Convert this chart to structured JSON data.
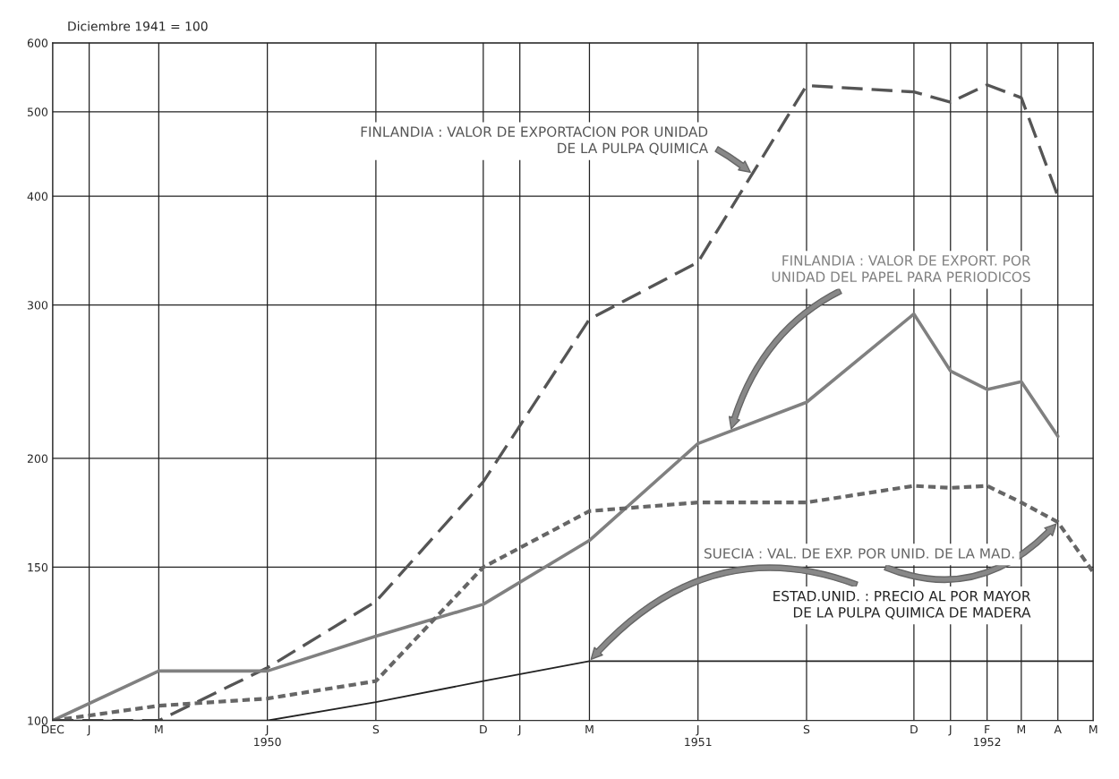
{
  "chart_data": {
    "type": "line",
    "subtitle": "Diciembre 1941 = 100",
    "log": "y",
    "ylim": [
      100,
      600
    ],
    "yticks": [
      100,
      150,
      200,
      300,
      400,
      500,
      600
    ],
    "xlim": [
      "1949-12",
      "1952-05"
    ],
    "xticks": [
      {
        "value": "1949-12",
        "label": "DEC"
      },
      {
        "value": "1950-01",
        "label": "J"
      },
      {
        "value": "1950-03",
        "label": "M"
      },
      {
        "value": "1950-06",
        "label": "J\n1950"
      },
      {
        "value": "1950-09",
        "label": "S"
      },
      {
        "value": "1950-12",
        "label": "D"
      },
      {
        "value": "1951-01",
        "label": "J"
      },
      {
        "value": "1951-03",
        "label": "M"
      },
      {
        "value": "1951-06",
        "label": "J\n1951"
      },
      {
        "value": "1951-09",
        "label": "S"
      },
      {
        "value": "1951-12",
        "label": "D"
      },
      {
        "value": "1952-01",
        "label": "J"
      },
      {
        "value": "1952-02",
        "label": "F\n1952"
      },
      {
        "value": "1952-03",
        "label": "M"
      },
      {
        "value": "1952-04",
        "label": "A"
      },
      {
        "value": "1952-05",
        "label": "M"
      }
    ],
    "grid": true,
    "legend": false,
    "series": [
      {
        "name": "FINLANDIA : VALOR DE EXPORTACION POR UNIDAD\nDE LA PULPA QUIMICA",
        "color": "#555555",
        "line_style": "dashed",
        "x": [
          "1949-12",
          "1950-03",
          "1950-06",
          "1950-09",
          "1950-12",
          "1951-03",
          "1951-06",
          "1951-09",
          "1951-12",
          "1952-01",
          "1952-02",
          "1952-03",
          "1952-04"
        ],
        "values": [
          100,
          100,
          115,
          137,
          188,
          289,
          336,
          536,
          527,
          513,
          537,
          519,
          400
        ]
      },
      {
        "name": "FINLANDIA : VALOR DE EXPORT. POR\nUNIDAD DEL PAPEL PARA PERIODICOS",
        "color": "#808080",
        "line_style": "solid",
        "x": [
          "1949-12",
          "1950-03",
          "1950-06",
          "1950-09",
          "1950-12",
          "1951-03",
          "1951-06",
          "1951-09",
          "1951-12",
          "1952-01",
          "1952-02",
          "1952-03",
          "1952-04"
        ],
        "values": [
          100,
          114,
          114,
          125,
          136,
          161,
          208,
          232,
          293,
          252,
          240,
          245,
          212
        ]
      },
      {
        "name": "SUECIA : VAL. DE EXP. POR UNID. DE LA MAD.",
        "color": "#666666",
        "line_style": "dotted",
        "x": [
          "1949-12",
          "1950-03",
          "1950-06",
          "1950-09",
          "1950-12",
          "1951-03",
          "1951-06",
          "1951-09",
          "1951-12",
          "1952-01",
          "1952-02",
          "1952-03",
          "1952-04",
          "1952-05"
        ],
        "values": [
          100,
          104,
          106,
          111,
          150,
          174,
          178,
          178,
          186,
          185,
          186,
          178,
          169,
          148
        ]
      },
      {
        "name": "ESTAD.UNID. : PRECIO AL POR MAYOR\nDE LA PULPA QUIMICA DE MADERA",
        "color": "#222222",
        "line_style": "solid",
        "x": [
          "1949-12",
          "1950-06",
          "1950-09",
          "1950-12",
          "1951-03",
          "1952-05"
        ],
        "values": [
          100,
          100,
          105,
          111,
          117,
          117
        ]
      }
    ]
  }
}
